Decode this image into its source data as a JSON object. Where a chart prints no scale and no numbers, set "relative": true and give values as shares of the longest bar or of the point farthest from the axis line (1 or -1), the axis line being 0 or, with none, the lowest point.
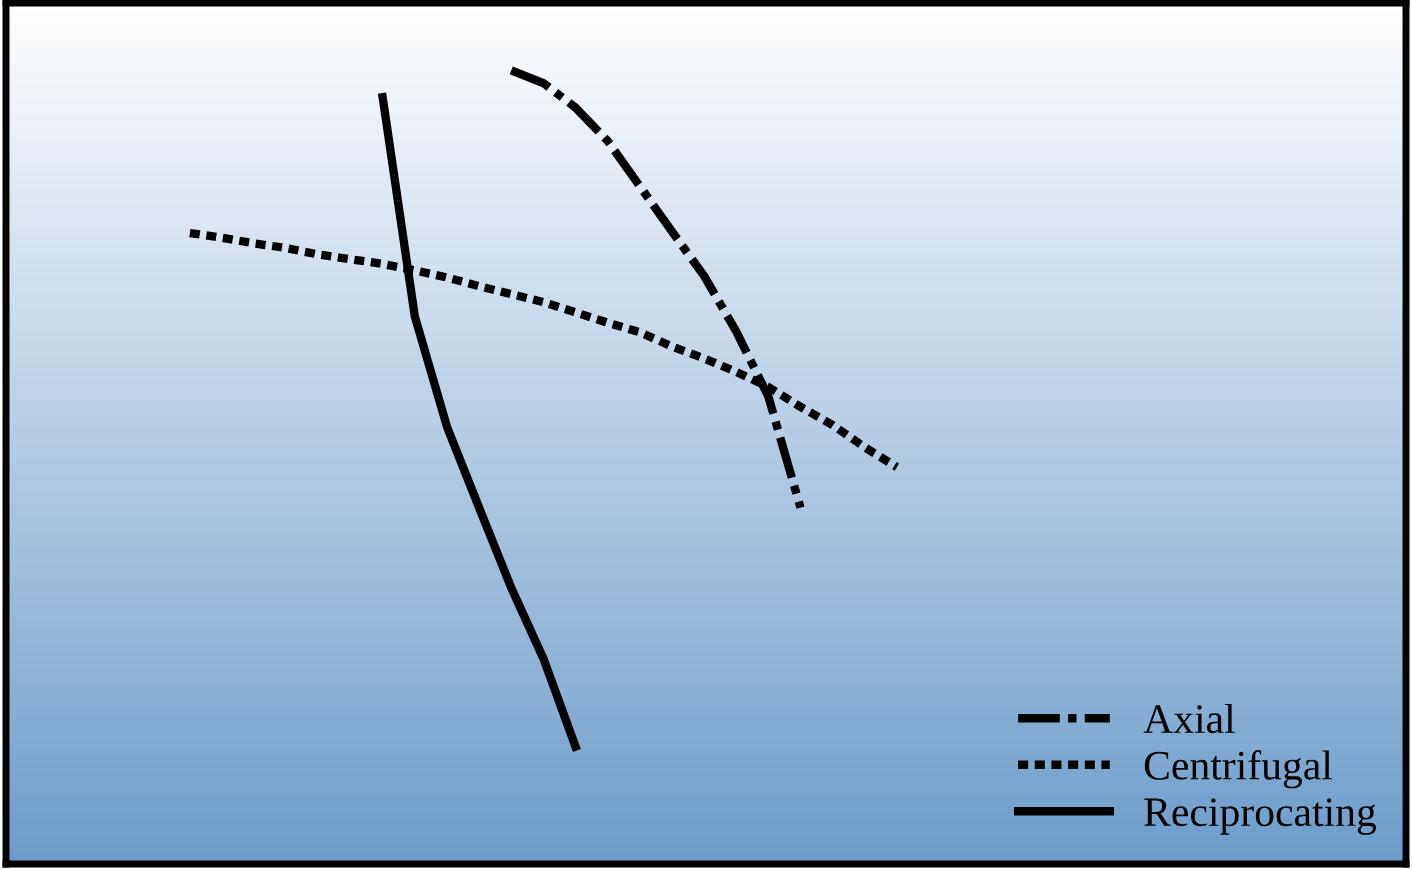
{
  "chart_data": {
    "type": "line",
    "relative": true,
    "tick_labels": false,
    "legend": "bottom right",
    "marker": "none",
    "categories": [
      null,
      null,
      null,
      null,
      null,
      null,
      null,
      null,
      null,
      null,
      null,
      null,
      null,
      null,
      null,
      null,
      null,
      null,
      null,
      null,
      null,
      null,
      null
    ],
    "series": [
      {
        "name": "Axial",
        "color": "#000000",
        "line_style": "dashdot",
        "values": [
          null,
          null,
          null,
          null,
          null,
          null,
          null,
          null,
          null,
          null,
          1.0,
          0.984,
          0.953,
          0.911,
          0.854,
          0.797,
          0.741,
          0.671,
          0.589,
          0.449,
          null,
          null,
          null
        ]
      },
      {
        "name": "Centrifugal",
        "color": "#000000",
        "line_style": "dotted",
        "values": [
          0.795,
          0.789,
          0.782,
          0.776,
          0.768,
          0.762,
          0.756,
          0.748,
          0.739,
          0.728,
          0.718,
          0.708,
          0.695,
          0.682,
          0.67,
          0.652,
          0.637,
          0.62,
          0.601,
          0.576,
          0.553,
          0.525,
          0.5
        ]
      },
      {
        "name": "Reciprocating",
        "color": "#000000",
        "line_style": "solid",
        "values": [
          null,
          null,
          null,
          null,
          null,
          null,
          0.966,
          0.69,
          0.551,
          0.449,
          0.348,
          0.259,
          0.148,
          null,
          null,
          null,
          null,
          null,
          null,
          null,
          null,
          null,
          null
        ]
      }
    ]
  }
}
